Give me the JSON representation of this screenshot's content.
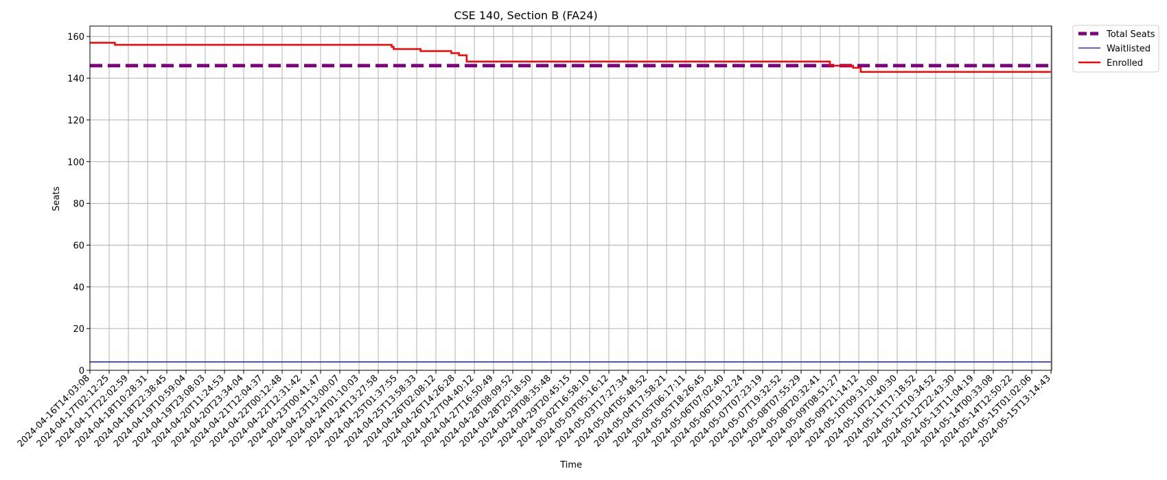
{
  "chart_data": {
    "type": "line",
    "title": "CSE 140, Section B (FA24)",
    "xlabel": "Time",
    "ylabel": "Seats",
    "ylim": [
      0,
      165
    ],
    "yticks": [
      0,
      20,
      40,
      60,
      80,
      100,
      120,
      140,
      160
    ],
    "grid": true,
    "legend_position": "outside-top-right",
    "x_tick_labels": [
      "2024-04-16T14:03:08",
      "2024-04-17T02:12:25",
      "2024-04-17T22:02:59",
      "2024-04-18T10:28:31",
      "2024-04-18T22:38:45",
      "2024-04-19T10:59:04",
      "2024-04-19T23:08:03",
      "2024-04-20T11:24:53",
      "2024-04-20T23:34:04",
      "2024-04-21T12:04:37",
      "2024-04-22T00:12:48",
      "2024-04-22T12:31:42",
      "2024-04-23T00:41:47",
      "2024-04-23T13:00:07",
      "2024-04-24T01:10:03",
      "2024-04-24T13:27:58",
      "2024-04-25T01:37:55",
      "2024-04-25T13:58:33",
      "2024-04-26T02:08:12",
      "2024-04-26T14:26:28",
      "2024-04-27T04:40:12",
      "2024-04-27T16:50:49",
      "2024-04-28T08:09:52",
      "2024-04-28T20:18:50",
      "2024-04-29T08:35:48",
      "2024-04-29T20:45:15",
      "2024-05-02T16:58:10",
      "2024-05-03T05:16:12",
      "2024-05-03T17:27:34",
      "2024-05-04T05:48:52",
      "2024-05-04T17:58:21",
      "2024-05-05T06:17:11",
      "2024-05-05T18:26:45",
      "2024-05-06T07:02:40",
      "2024-05-06T19:12:24",
      "2024-05-07T07:23:19",
      "2024-05-07T19:32:52",
      "2024-05-08T07:55:29",
      "2024-05-08T20:32:41",
      "2024-05-09T08:51:27",
      "2024-05-09T21:14:12",
      "2024-05-10T09:31:00",
      "2024-05-10T21:40:30",
      "2024-05-11T17:18:52",
      "2024-05-12T10:34:52",
      "2024-05-12T22:43:30",
      "2024-05-13T11:04:19",
      "2024-05-14T00:33:08",
      "2024-05-14T12:50:22",
      "2024-05-15T01:02:06",
      "2024-05-15T13:14:43"
    ],
    "series": [
      {
        "name": "Total Seats",
        "color": "#800080",
        "style": "dashed",
        "x": [
          0,
          50
        ],
        "y": [
          146,
          146
        ]
      },
      {
        "name": "Waitlisted",
        "color": "#0000ff",
        "style": "solid",
        "x": [
          0,
          50
        ],
        "y": [
          4,
          4
        ]
      },
      {
        "name": "Enrolled",
        "color": "#ff0000",
        "style": "step",
        "x": [
          0,
          1.3,
          15.7,
          15.8,
          15.9,
          17.2,
          18.8,
          19.2,
          19.6,
          38.5,
          38.6,
          39.7,
          39.9,
          40.1,
          50
        ],
        "y": [
          157,
          156,
          155,
          154,
          154,
          153,
          152,
          151,
          148,
          146,
          146,
          145,
          145,
          143,
          143
        ]
      }
    ]
  }
}
